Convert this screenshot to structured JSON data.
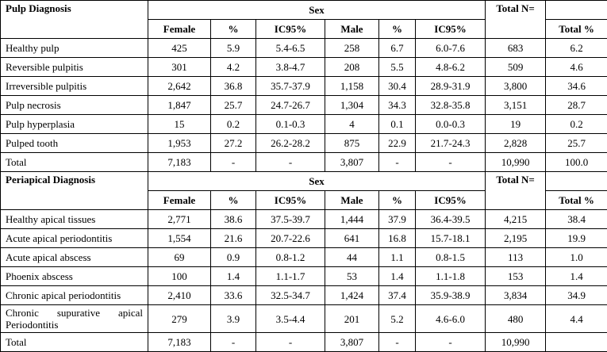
{
  "sections": [
    {
      "title": "Pulp Diagnosis",
      "group_header": "Sex",
      "total_n_header": "Total N=",
      "columns": [
        "Female",
        "%",
        "IC95%",
        "Male",
        "%",
        "IC95%"
      ],
      "total_pct_header": "Total %",
      "rows": [
        [
          "Healthy pulp",
          "425",
          "5.9",
          "5.4-6.5",
          "258",
          "6.7",
          "6.0-7.6",
          "683",
          "6.2"
        ],
        [
          "Reversible pulpitis",
          "301",
          "4.2",
          "3.8-4.7",
          "208",
          "5.5",
          "4.8-6.2",
          "509",
          "4.6"
        ],
        [
          "Irreversible pulpitis",
          "2,642",
          "36.8",
          "35.7-37.9",
          "1,158",
          "30.4",
          "28.9-31.9",
          "3,800",
          "34.6"
        ],
        [
          "Pulp necrosis",
          "1,847",
          "25.7",
          "24.7-26.7",
          "1,304",
          "34.3",
          "32.8-35.8",
          "3,151",
          "28.7"
        ],
        [
          "Pulp hyperplasia",
          "15",
          "0.2",
          "0.1-0.3",
          "4",
          "0.1",
          "0.0-0.3",
          "19",
          "0.2"
        ],
        [
          "Pulped tooth",
          "1,953",
          "27.2",
          "26.2-28.2",
          "875",
          "22.9",
          "21.7-24.3",
          "2,828",
          "25.7"
        ],
        [
          "Total",
          "7,183",
          "-",
          "-",
          "3,807",
          "-",
          "-",
          "10,990",
          "100.0"
        ]
      ]
    },
    {
      "title": "Periapical Diagnosis",
      "group_header": "Sex",
      "total_n_header": "Total N=",
      "columns": [
        "Female",
        "%",
        "IC95%",
        "Male",
        "%",
        "IC95%"
      ],
      "total_pct_header": "Total %",
      "rows": [
        [
          "Healthy apical tissues",
          "2,771",
          "38.6",
          "37.5-39.7",
          "1,444",
          "37.9",
          "36.4-39.5",
          "4,215",
          "38.4"
        ],
        [
          "Acute apical periodontitis",
          "1,554",
          "21.6",
          "20.7-22.6",
          "641",
          "16.8",
          "15.7-18.1",
          "2,195",
          "19.9"
        ],
        [
          "Acute apical abscess",
          "69",
          "0.9",
          "0.8-1.2",
          "44",
          "1.1",
          "0.8-1.5",
          "113",
          "1.0"
        ],
        [
          "Phoenix abscess",
          "100",
          "1.4",
          "1.1-1.7",
          "53",
          "1.4",
          "1.1-1.8",
          "153",
          "1.4"
        ],
        [
          "Chronic apical periodontitis",
          "2,410",
          "33.6",
          "32.5-34.7",
          "1,424",
          "37.4",
          "35.9-38.9",
          "3,834",
          "34.9"
        ],
        [
          "Chronic supurative apical Periodontitis",
          "279",
          "3.9",
          "3.5-4.4",
          "201",
          "5.2",
          "4.6-6.0",
          "480",
          "4.4"
        ],
        [
          "Total",
          "7,183",
          "-",
          "-",
          "3,807",
          "-",
          "-",
          "10,990",
          ""
        ]
      ]
    }
  ]
}
